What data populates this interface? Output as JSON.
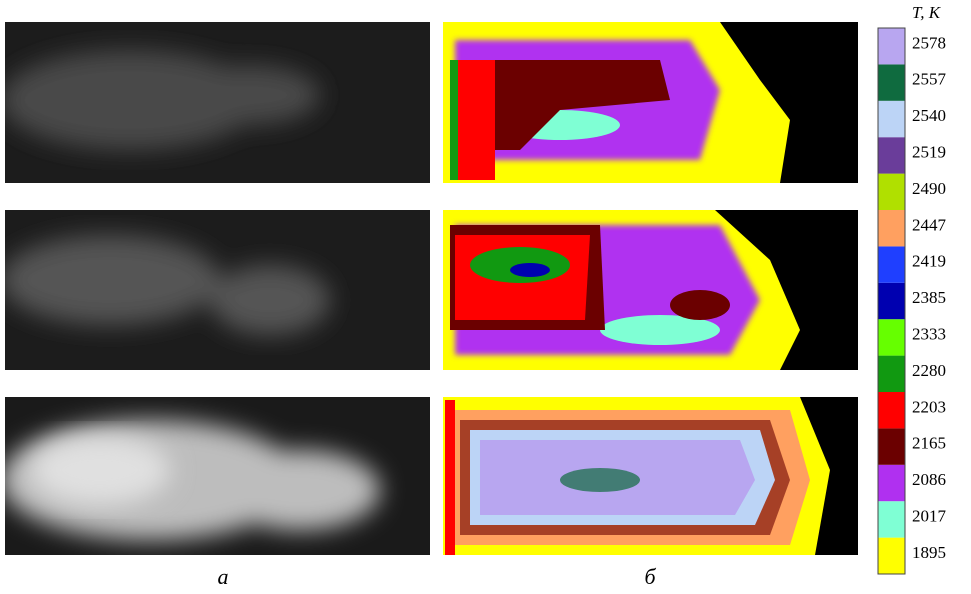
{
  "panels": {
    "a": "а",
    "b": "б"
  },
  "colorbar": {
    "label": "T, K",
    "ticks": [
      1895,
      2017,
      2086,
      2165,
      2203,
      2280,
      2333,
      2385,
      2419,
      2447,
      2490,
      2519,
      2540,
      2557,
      2578
    ],
    "colors": [
      "#ffff00",
      "#7fffd4",
      "#b030f0",
      "#6b0000",
      "#ff0000",
      "#119911",
      "#66ff00",
      "#0000b0",
      "#1f3fff",
      "#ffa060",
      "#b0e000",
      "#6a3d9a",
      "#bcd4f6",
      "#0f6b3f",
      "#b8a6f0"
    ]
  }
}
